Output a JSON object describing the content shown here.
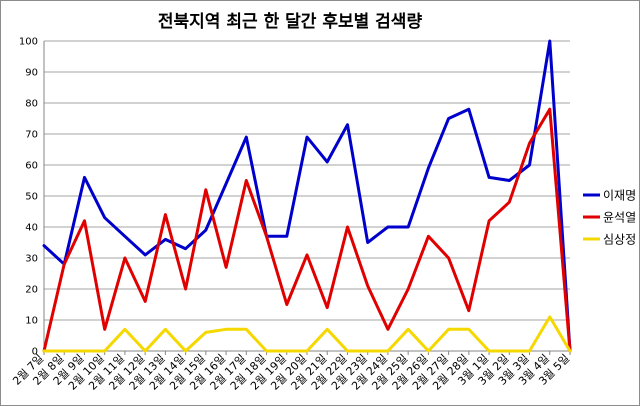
{
  "chart_data": {
    "type": "line",
    "title": "전북지역 최근 한 달간 후보별 검색량",
    "xlabel": "",
    "ylabel": "",
    "ylim": [
      0,
      100
    ],
    "yticks": [
      0,
      10,
      20,
      30,
      40,
      50,
      60,
      70,
      80,
      90,
      100
    ],
    "grid": true,
    "legend_position": "right",
    "categories": [
      "2월 7일",
      "2월 8일",
      "2월 9일",
      "2월 10일",
      "2월 11일",
      "2월 12일",
      "2월 13일",
      "2월 14일",
      "2월 15일",
      "2월 16일",
      "2월 17일",
      "2월 18일",
      "2월 19일",
      "2월 20일",
      "2월 21일",
      "2월 22일",
      "2월 23일",
      "2월 24일",
      "2월 25일",
      "2월 26일",
      "2월 27일",
      "2월 28일",
      "3월 1일",
      "3월 2일",
      "3월 3일",
      "3월 4일",
      "3월 5일"
    ],
    "series": [
      {
        "name": "이재명",
        "color": "#0000cc",
        "values": [
          34,
          28,
          56,
          43,
          37,
          31,
          36,
          33,
          39,
          54,
          69,
          37,
          37,
          69,
          61,
          73,
          35,
          40,
          40,
          59,
          75,
          78,
          56,
          55,
          60,
          100,
          0
        ]
      },
      {
        "name": "윤석열",
        "color": "#e00000",
        "values": [
          0,
          28,
          42,
          7,
          30,
          16,
          44,
          20,
          52,
          27,
          55,
          37,
          15,
          31,
          14,
          40,
          21,
          7,
          20,
          37,
          30,
          13,
          42,
          48,
          67,
          78,
          0
        ]
      },
      {
        "name": "심상정",
        "color": "#f5d800",
        "values": [
          0,
          0,
          0,
          0,
          7,
          0,
          7,
          0,
          6,
          7,
          7,
          0,
          0,
          0,
          7,
          0,
          0,
          0,
          7,
          0,
          7,
          7,
          0,
          0,
          0,
          11,
          0
        ]
      }
    ]
  }
}
